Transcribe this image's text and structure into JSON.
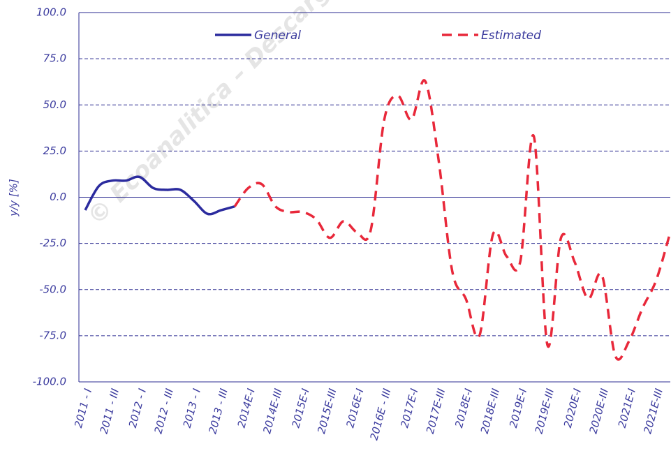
{
  "chart_data": {
    "type": "line",
    "y_label": "y/y [%]",
    "watermark": "© Ecoanalitica – Descarg",
    "categories": [
      "2011 - I",
      null,
      "2011 - III",
      null,
      "2012 - I",
      null,
      "2012 - III",
      null,
      "2013 - I",
      null,
      "2013 - III",
      null,
      "2014E-I",
      null,
      "2014E-III",
      null,
      "2015E-I",
      null,
      "2015E-III",
      null,
      "2016E-I",
      null,
      "2016E - III",
      null,
      "2017E-I",
      null,
      "2017E-III",
      null,
      "2018E-I",
      null,
      "2018E-III",
      null,
      "2019E-I",
      null,
      "2019E-III",
      null,
      "2020E-I",
      null,
      "2020E-III",
      null,
      "2021E-I",
      null,
      "2021E-III",
      null
    ],
    "series": [
      {
        "name": "General",
        "color": "#2b2b9e",
        "dashed": false,
        "values": [
          -7,
          6,
          9,
          9,
          11,
          5,
          4,
          4,
          -2,
          -9,
          -7,
          -5,
          null,
          null,
          null,
          null,
          null,
          null,
          null,
          null,
          null,
          null,
          null,
          null,
          null,
          null,
          null,
          null,
          null,
          null,
          null,
          null,
          null,
          null,
          null,
          null,
          null,
          null,
          null,
          null,
          null,
          null,
          null,
          null
        ]
      },
      {
        "name": "Estimated",
        "color": "#e8283a",
        "dashed": true,
        "values": [
          null,
          null,
          null,
          null,
          null,
          null,
          null,
          null,
          null,
          null,
          null,
          -5,
          5,
          7,
          -5,
          -8,
          -8,
          -12,
          -22,
          -13,
          -19,
          -18,
          42,
          55,
          42,
          63,
          20,
          -40,
          -55,
          -75,
          -20,
          -32,
          -35,
          33,
          -80,
          -22,
          -35,
          -55,
          -42,
          -86,
          -78,
          -60,
          -45,
          -20
        ]
      }
    ],
    "ylim": [
      -100,
      100
    ],
    "yticks": [
      {
        "value": -100,
        "label": "-100.0"
      },
      {
        "value": -75,
        "label": "-75.0"
      },
      {
        "value": -50,
        "label": "-50.0"
      },
      {
        "value": -25,
        "label": "-25.0"
      },
      {
        "value": 0,
        "label": "0.0"
      },
      {
        "value": 25,
        "label": "25.0"
      },
      {
        "value": 50,
        "label": "50.0"
      },
      {
        "value": 75,
        "label": "75.0"
      },
      {
        "value": 100,
        "label": "100.0"
      }
    ],
    "grid": true,
    "legend": "top"
  }
}
